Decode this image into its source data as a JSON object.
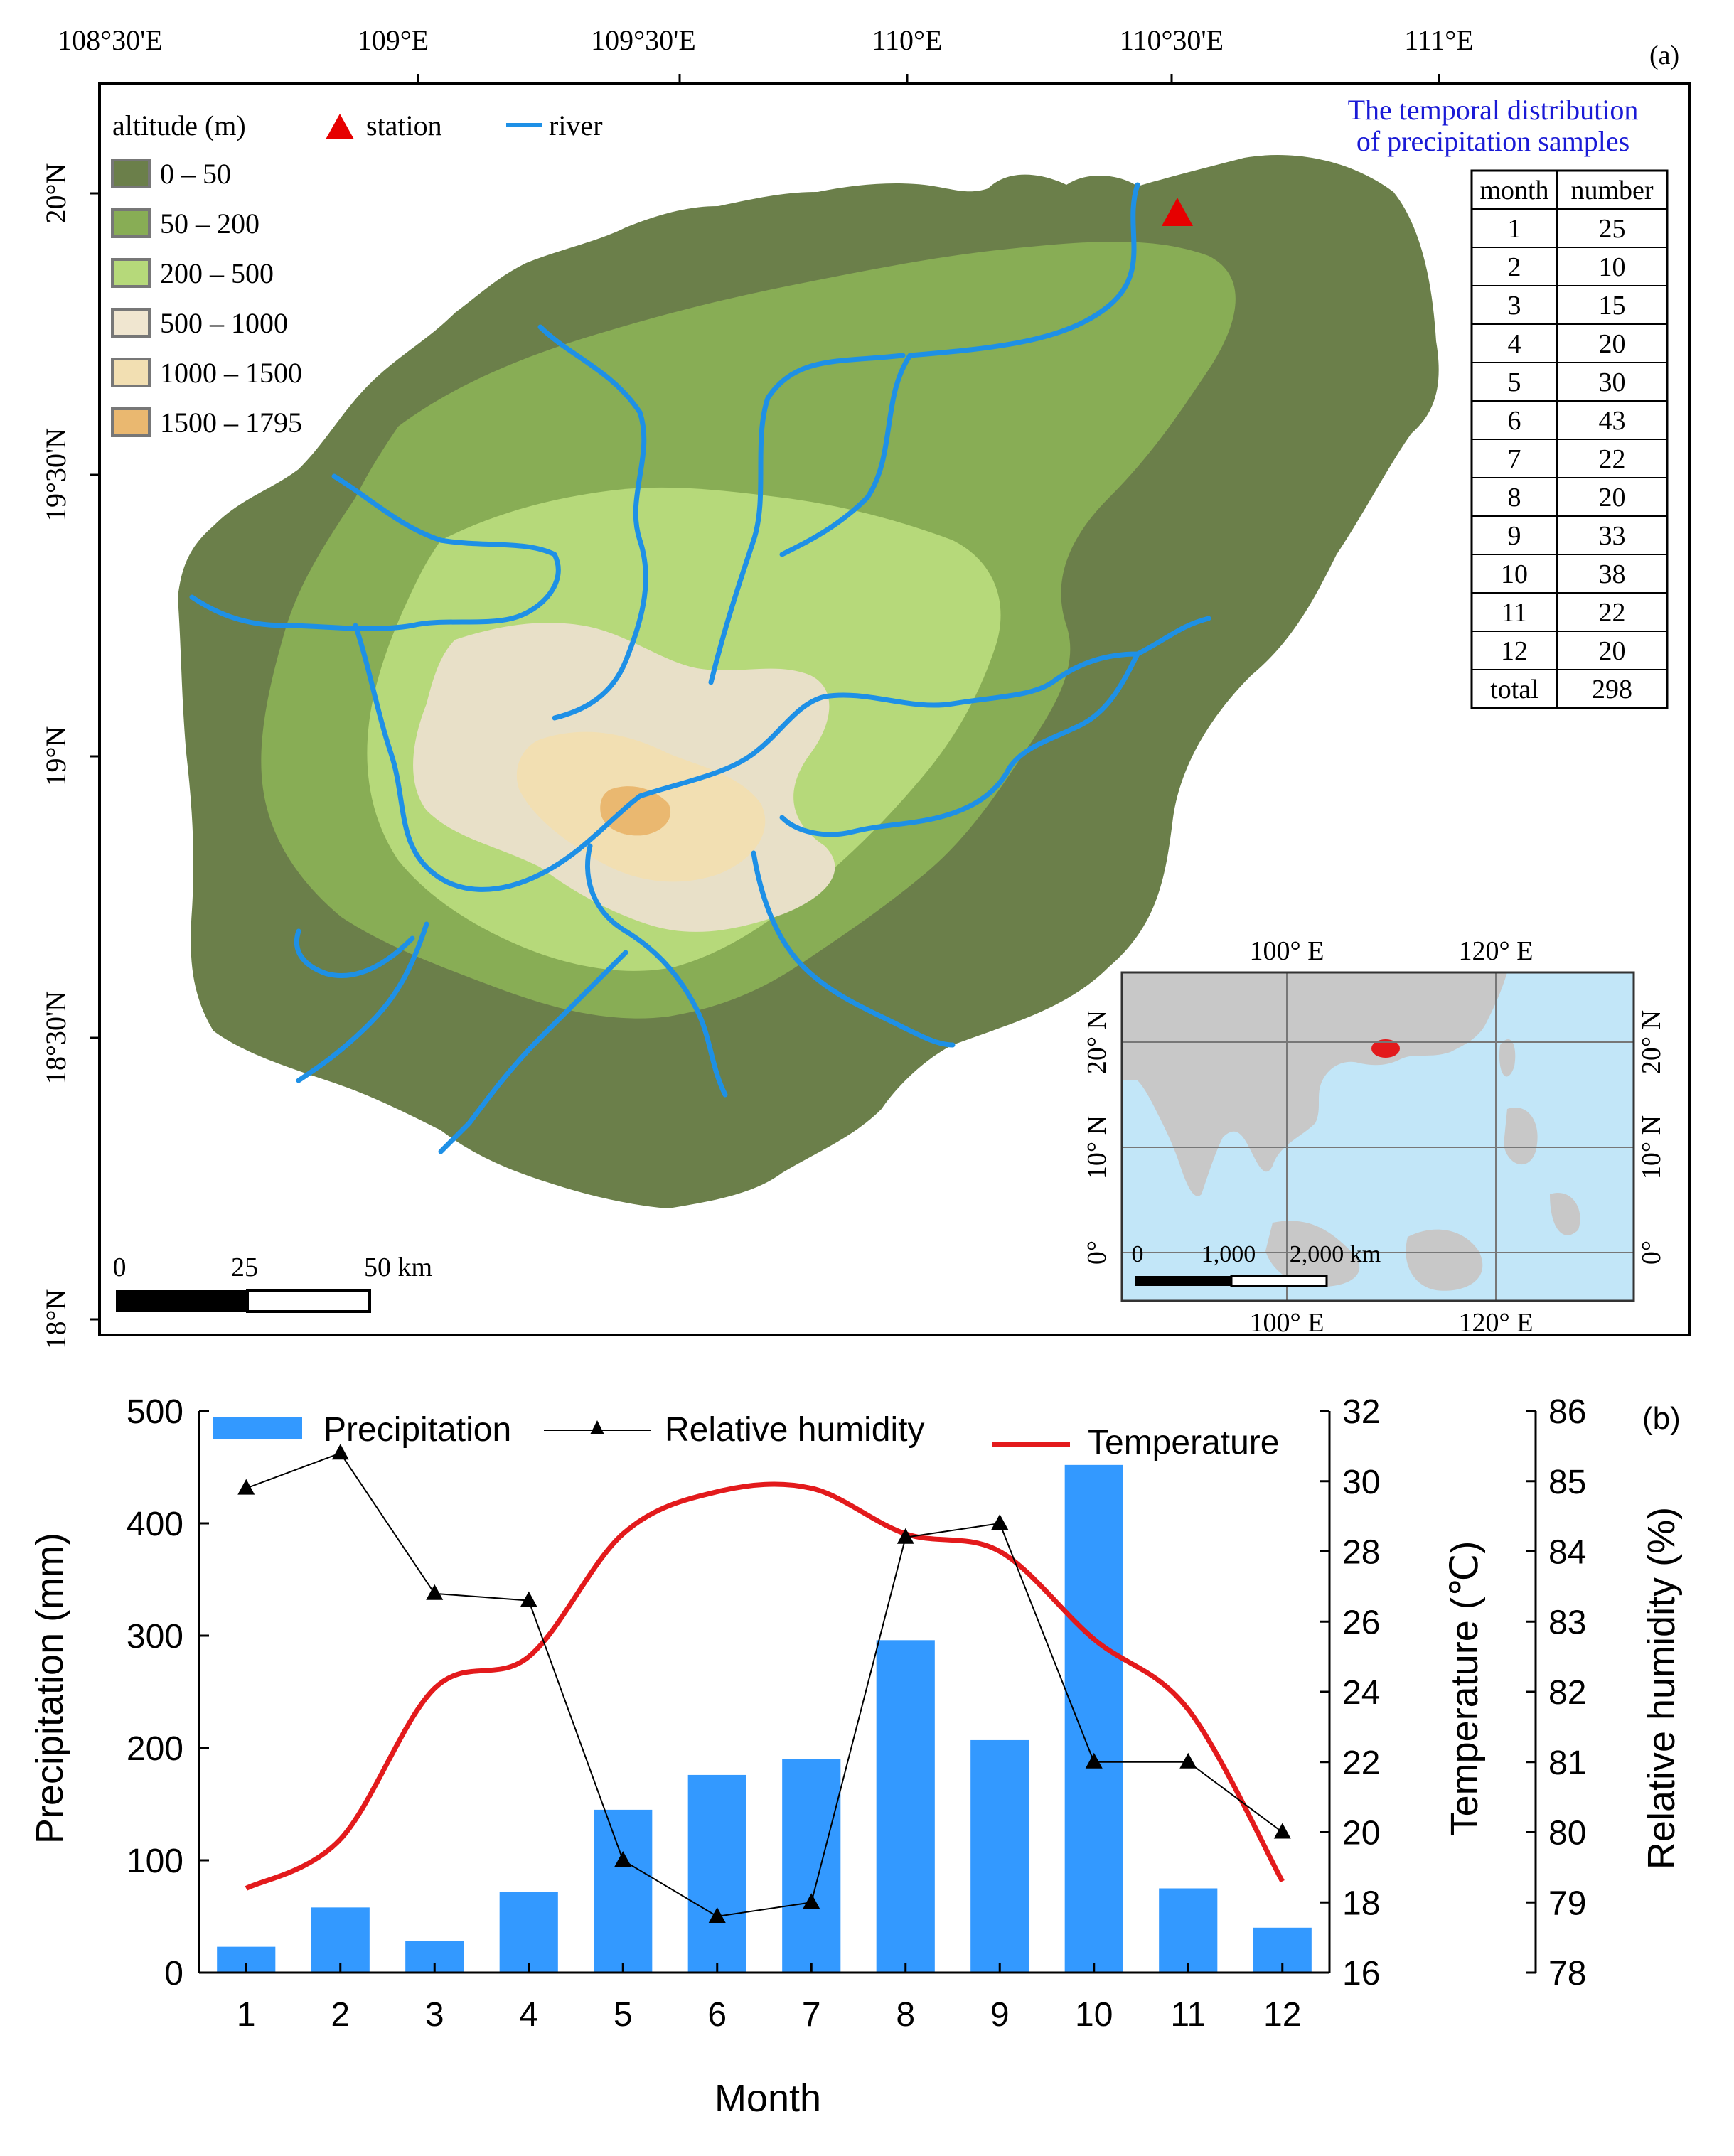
{
  "colors": {
    "lowland": "#6b7f4a",
    "low_hill": "#88ad55",
    "hill": "#a8d070",
    "mountain": "#e8e0c8",
    "high_mountain": "#f2dfb2",
    "peak": "#eab870",
    "river": "#1e90e6",
    "station": "#e60000",
    "land_inset": "#c8c8c8",
    "sea_inset": "#c2e6f8",
    "hainan_inset": "#e31a1c",
    "bar": "#3399ff",
    "temperature_line": "#e31a1c",
    "humidity_line": "#000000",
    "table_title": "#1a1ad6"
  },
  "panel_a": {
    "label": "(a)",
    "top_ticks": [
      "108°30'E",
      "109°E",
      "109°30'E",
      "110°E",
      "110°30'E",
      "111°E"
    ],
    "left_ticks": [
      "20°N",
      "19°30'N",
      "19°N",
      "18°30'N",
      "18°N"
    ],
    "legend": {
      "title": "altitude (m)",
      "station_label": "station",
      "river_label": "river",
      "classes": [
        {
          "label": "0 – 50",
          "color": "#6b7f4a"
        },
        {
          "label": "50 – 200",
          "color": "#88ad55"
        },
        {
          "label": "200 – 500",
          "color": "#b6d97a"
        },
        {
          "label": "500 – 1000",
          "color": "#f0e6d0"
        },
        {
          "label": "1000  – 1500",
          "color": "#f2dfb2"
        },
        {
          "label": "1500  – 1795",
          "color": "#eab870"
        }
      ]
    },
    "scale_bar": {
      "labels": [
        "0",
        "25",
        "50 km"
      ]
    },
    "table": {
      "title_line1": "The temporal distribution",
      "title_line2": "of precipitation samples",
      "headers": [
        "month",
        "number"
      ],
      "rows": [
        [
          "1",
          "25"
        ],
        [
          "2",
          "10"
        ],
        [
          "3",
          "15"
        ],
        [
          "4",
          "20"
        ],
        [
          "5",
          "30"
        ],
        [
          "6",
          "43"
        ],
        [
          "7",
          "22"
        ],
        [
          "8",
          "20"
        ],
        [
          "9",
          "33"
        ],
        [
          "10",
          "38"
        ],
        [
          "11",
          "22"
        ],
        [
          "12",
          "20"
        ],
        [
          "total",
          "298"
        ]
      ]
    },
    "inset": {
      "top_ticks": [
        "100° E",
        "120° E"
      ],
      "bottom_ticks": [
        "100° E",
        "120° E"
      ],
      "left_ticks": [
        "20° N",
        "10° N",
        "0°"
      ],
      "right_ticks": [
        "20° N",
        "10° N",
        "0°"
      ],
      "scale_labels": [
        "0",
        "1,000",
        "2,000 km"
      ]
    }
  },
  "chart_data": {
    "type": "bar",
    "panel_label": "(b)",
    "xlabel": "Month",
    "categories": [
      "1",
      "2",
      "3",
      "4",
      "5",
      "6",
      "7",
      "8",
      "9",
      "10",
      "11",
      "12"
    ],
    "series": [
      {
        "name": "Precipitation",
        "type": "bar",
        "axis": "left",
        "values": [
          23,
          58,
          28,
          72,
          145,
          176,
          190,
          296,
          207,
          452,
          75,
          40
        ]
      },
      {
        "name": "Relative humidity",
        "type": "line",
        "axis": "right_outer",
        "values": [
          84.9,
          85.4,
          83.4,
          83.3,
          79.6,
          78.8,
          79.0,
          84.2,
          84.4,
          81.0,
          81.0,
          80.0
        ]
      },
      {
        "name": "Temperature",
        "type": "line",
        "axis": "right_inner",
        "values": [
          18.4,
          19.8,
          24.1,
          25.0,
          28.5,
          29.7,
          29.8,
          28.5,
          28.0,
          25.5,
          23.5,
          18.6
        ]
      }
    ],
    "y_left": {
      "label": "Precipitation (mm)",
      "ylim": [
        0,
        500
      ],
      "ticks": [
        "0",
        "100",
        "200",
        "300",
        "400",
        "500"
      ]
    },
    "y_right_inner": {
      "label": "Temperature (℃)",
      "ylim": [
        16,
        32
      ],
      "ticks": [
        "16",
        "18",
        "20",
        "22",
        "24",
        "26",
        "28",
        "30",
        "32"
      ]
    },
    "y_right_outer": {
      "label": "Relative humidity (%)",
      "ylim": [
        78,
        86
      ],
      "ticks": [
        "78",
        "79",
        "80",
        "81",
        "82",
        "83",
        "84",
        "85",
        "86"
      ]
    },
    "grid": false,
    "legend_placement": "top"
  }
}
